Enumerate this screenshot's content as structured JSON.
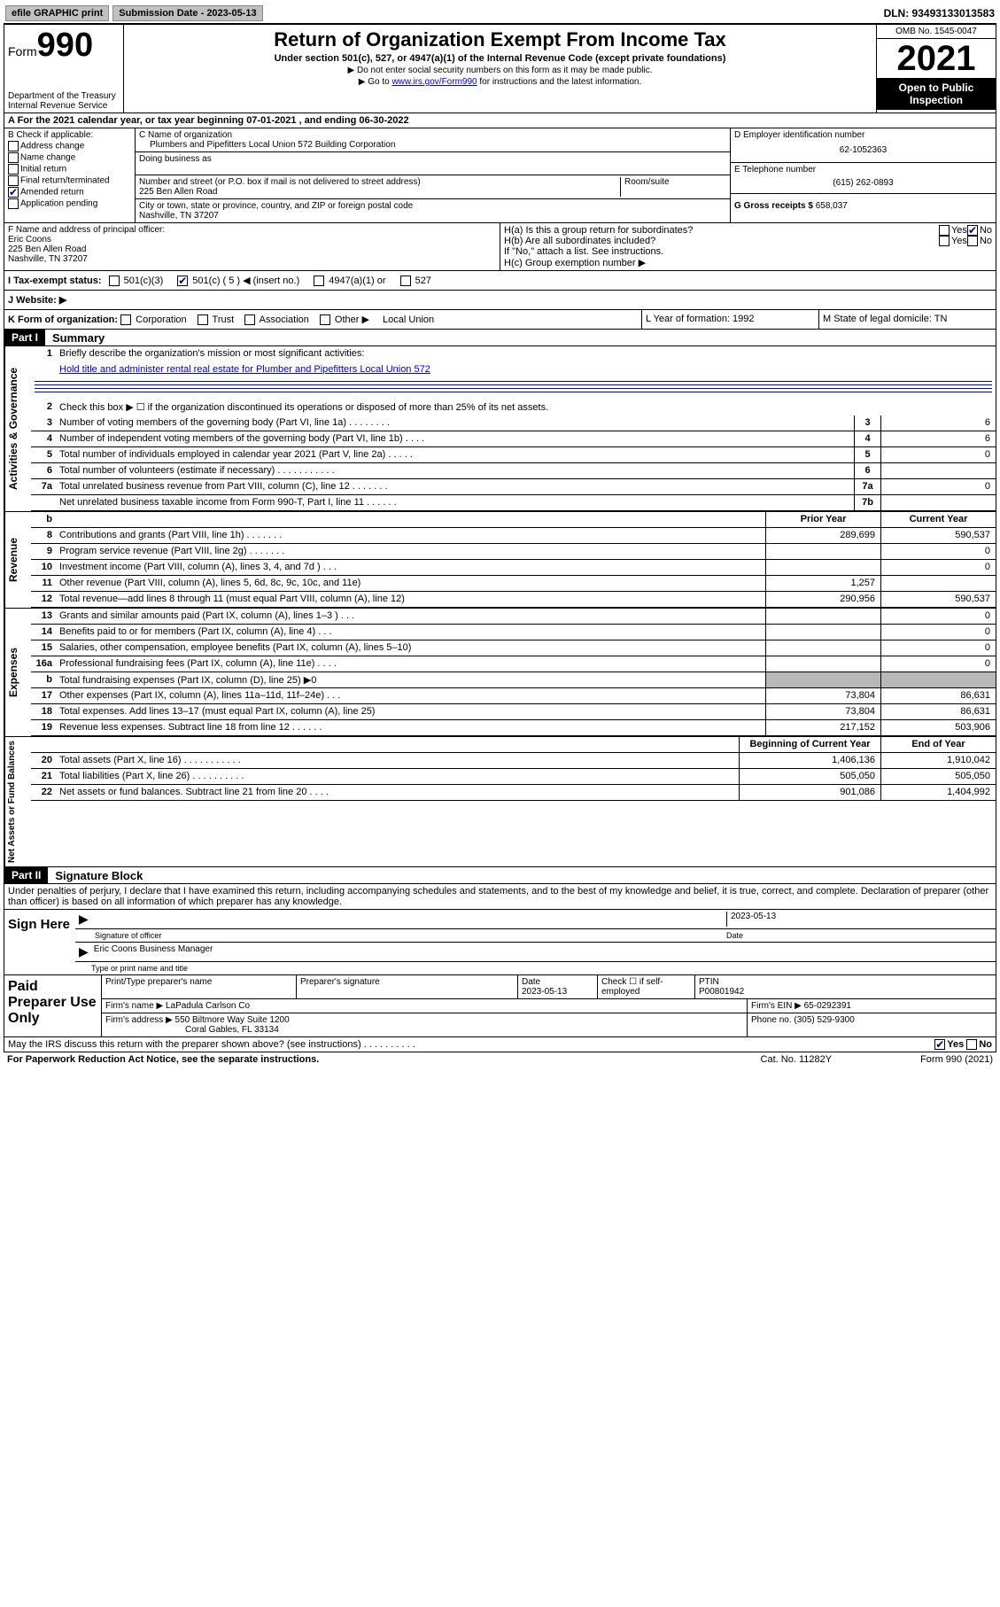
{
  "topbar": {
    "efile": "efile GRAPHIC print",
    "subdate_label": "Submission Date - 2023-05-13",
    "dln": "DLN: 93493133013583"
  },
  "header": {
    "form_label": "Form",
    "form_num": "990",
    "dept": "Department of the Treasury",
    "irs": "Internal Revenue Service",
    "title": "Return of Organization Exempt From Income Tax",
    "sub": "Under section 501(c), 527, or 4947(a)(1) of the Internal Revenue Code (except private foundations)",
    "note1": "▶ Do not enter social security numbers on this form as it may be made public.",
    "note2_pre": "▶ Go to ",
    "note2_link": "www.irs.gov/Form990",
    "note2_post": " for instructions and the latest information.",
    "omb": "OMB No. 1545-0047",
    "year": "2021",
    "open": "Open to Public Inspection"
  },
  "rowA": "A  For the 2021 calendar year, or tax year beginning 07-01-2021   , and ending 06-30-2022",
  "colB": {
    "hdr": "B Check if applicable:",
    "opts": [
      "Address change",
      "Name change",
      "Initial return",
      "Final return/terminated",
      "Amended return",
      "Application pending"
    ],
    "checked_idx": 4
  },
  "colC": {
    "name_label": "C Name of organization",
    "name": "Plumbers and Pipefitters Local Union 572 Building Corporation",
    "dba_label": "Doing business as",
    "street_label": "Number and street (or P.O. box if mail is not delivered to street address)",
    "room_label": "Room/suite",
    "street": "225 Ben Allen Road",
    "city_label": "City or town, state or province, country, and ZIP or foreign postal code",
    "city": "Nashville, TN  37207"
  },
  "colD": {
    "ein_label": "D Employer identification number",
    "ein": "62-1052363",
    "tel_label": "E Telephone number",
    "tel": "(615) 262-0893",
    "gross_label": "G Gross receipts $",
    "gross": "658,037"
  },
  "rowF": {
    "label": "F  Name and address of principal officer:",
    "name": "Eric Coons",
    "addr1": "225 Ben Allen Road",
    "addr2": "Nashville, TN  37207"
  },
  "rowH": {
    "ha": "H(a)  Is this a group return for subordinates?",
    "hb": "H(b)  Are all subordinates included?",
    "hb_note": "If \"No,\" attach a list. See instructions.",
    "hc": "H(c)  Group exemption number ▶",
    "yes": "Yes",
    "no": "No"
  },
  "rowI": {
    "label": "I   Tax-exempt status:",
    "opts": [
      "501(c)(3)",
      "501(c) ( 5 ) ◀ (insert no.)",
      "4947(a)(1) or",
      "527"
    ],
    "checked_idx": 1
  },
  "rowJ": "J   Website: ▶",
  "rowK": {
    "label": "K Form of organization:",
    "opts": [
      "Corporation",
      "Trust",
      "Association",
      "Other ▶"
    ],
    "other": "Local Union"
  },
  "rowL": "L Year of formation: 1992",
  "rowM": "M State of legal domicile: TN",
  "part1": {
    "hdr": "Part I",
    "title": "Summary",
    "q1": "Briefly describe the organization's mission or most significant activities:",
    "mission": "Hold title and administer rental real estate for Plumber and Pipefitters Local Union 572",
    "q2": "Check this box ▶ ☐  if the organization discontinued its operations or disposed of more than 25% of its net assets.",
    "rows_gov": [
      {
        "n": "3",
        "d": "Number of voting members of the governing body (Part VI, line 1a)  .   .   .   .   .   .   .   .",
        "box": "3",
        "v": "6"
      },
      {
        "n": "4",
        "d": "Number of independent voting members of the governing body (Part VI, line 1b)   .   .   .   .",
        "box": "4",
        "v": "6"
      },
      {
        "n": "5",
        "d": "Total number of individuals employed in calendar year 2021 (Part V, line 2a)   .   .   .   .   .",
        "box": "5",
        "v": "0"
      },
      {
        "n": "6",
        "d": "Total number of volunteers (estimate if necessary)   .   .   .   .   .   .   .   .   .   .   .",
        "box": "6",
        "v": ""
      },
      {
        "n": "7a",
        "d": "Total unrelated business revenue from Part VIII, column (C), line 12   .   .   .   .   .   .   .",
        "box": "7a",
        "v": "0"
      },
      {
        "n": "",
        "d": "Net unrelated business taxable income from Form 990-T, Part I, line 11   .   .   .   .   .   .",
        "box": "7b",
        "v": ""
      }
    ],
    "col_prior": "Prior Year",
    "col_current": "Current Year",
    "rows_rev": [
      {
        "n": "8",
        "d": "Contributions and grants (Part VIII, line 1h)   .   .   .   .   .   .   .",
        "p": "289,699",
        "c": "590,537"
      },
      {
        "n": "9",
        "d": "Program service revenue (Part VIII, line 2g)   .   .   .   .   .   .   .",
        "p": "",
        "c": "0"
      },
      {
        "n": "10",
        "d": "Investment income (Part VIII, column (A), lines 3, 4, and 7d )   .   .   .",
        "p": "",
        "c": "0"
      },
      {
        "n": "11",
        "d": "Other revenue (Part VIII, column (A), lines 5, 6d, 8c, 9c, 10c, and 11e)",
        "p": "1,257",
        "c": ""
      },
      {
        "n": "12",
        "d": "Total revenue—add lines 8 through 11 (must equal Part VIII, column (A), line 12)",
        "p": "290,956",
        "c": "590,537"
      }
    ],
    "rows_exp": [
      {
        "n": "13",
        "d": "Grants and similar amounts paid (Part IX, column (A), lines 1–3 )   .   .   .",
        "p": "",
        "c": "0"
      },
      {
        "n": "14",
        "d": "Benefits paid to or for members (Part IX, column (A), line 4)   .   .   .",
        "p": "",
        "c": "0"
      },
      {
        "n": "15",
        "d": "Salaries, other compensation, employee benefits (Part IX, column (A), lines 5–10)",
        "p": "",
        "c": "0"
      },
      {
        "n": "16a",
        "d": "Professional fundraising fees (Part IX, column (A), line 11e)   .   .   .   .",
        "p": "",
        "c": "0"
      },
      {
        "n": "b",
        "d": "Total fundraising expenses (Part IX, column (D), line 25) ▶0",
        "p": "shade",
        "c": "shade"
      },
      {
        "n": "17",
        "d": "Other expenses (Part IX, column (A), lines 11a–11d, 11f–24e)   .   .   .",
        "p": "73,804",
        "c": "86,631"
      },
      {
        "n": "18",
        "d": "Total expenses. Add lines 13–17 (must equal Part IX, column (A), line 25)",
        "p": "73,804",
        "c": "86,631"
      },
      {
        "n": "19",
        "d": "Revenue less expenses. Subtract line 18 from line 12   .   .   .   .   .   .",
        "p": "217,152",
        "c": "503,906"
      }
    ],
    "col_begin": "Beginning of Current Year",
    "col_end": "End of Year",
    "rows_net": [
      {
        "n": "20",
        "d": "Total assets (Part X, line 16)   .   .   .   .   .   .   .   .   .   .   .",
        "p": "1,406,136",
        "c": "1,910,042"
      },
      {
        "n": "21",
        "d": "Total liabilities (Part X, line 26)   .   .   .   .   .   .   .   .   .   .",
        "p": "505,050",
        "c": "505,050"
      },
      {
        "n": "22",
        "d": "Net assets or fund balances. Subtract line 21 from line 20   .   .   .   .",
        "p": "901,086",
        "c": "1,404,992"
      }
    ]
  },
  "part2": {
    "hdr": "Part II",
    "title": "Signature Block",
    "disclaimer": "Under penalties of perjury, I declare that I have examined this return, including accompanying schedules and statements, and to the best of my knowledge and belief, it is true, correct, and complete. Declaration of preparer (other than officer) is based on all information of which preparer has any knowledge.",
    "sign_here": "Sign Here",
    "sig_officer": "Signature of officer",
    "sig_date": "Date",
    "sig_date_val": "2023-05-13",
    "officer_name": "Eric Coons  Business Manager",
    "type_name": "Type or print name and title",
    "paid": "Paid Preparer Use Only",
    "prep_name_label": "Print/Type preparer's name",
    "prep_sig_label": "Preparer's signature",
    "prep_date_label": "Date",
    "prep_date": "2023-05-13",
    "prep_check": "Check ☐ if self-employed",
    "ptin_label": "PTIN",
    "ptin": "P00801942",
    "firm_name_label": "Firm's name    ▶",
    "firm_name": "LaPadula Carlson Co",
    "firm_ein_label": "Firm's EIN ▶",
    "firm_ein": "65-0292391",
    "firm_addr_label": "Firm's address ▶",
    "firm_addr1": "550 Biltmore Way Suite 1200",
    "firm_addr2": "Coral Gables, FL  33134",
    "phone_label": "Phone no.",
    "phone": "(305) 529-9300"
  },
  "footer": {
    "discuss": "May the IRS discuss this return with the preparer shown above? (see instructions)   .   .   .   .   .   .   .   .   .   .",
    "yes": "Yes",
    "no": "No",
    "paperwork": "For Paperwork Reduction Act Notice, see the separate instructions.",
    "cat": "Cat. No. 11282Y",
    "form": "Form 990 (2021)"
  }
}
